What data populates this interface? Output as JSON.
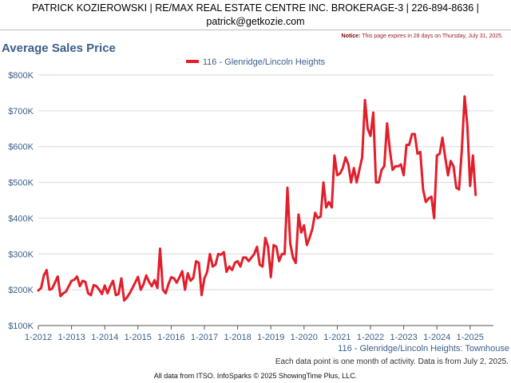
{
  "header": {
    "line1": "PATRICK KOZIEROWSKI | RE/MAX REAL ESTATE CENTRE INC. BROKERAGE-3 | 226-894-8636 |",
    "line2": "patrick@getkozie.com"
  },
  "notice": {
    "label": "Notice:",
    "text": "This page expires in 28 days on Thursday, July 31, 2025."
  },
  "footer": {
    "series_note": "116 - Glenridge/Lincoln Heights: Townhouse",
    "data_note": "Each data point is one month of activity. Data is from July 2, 2025.",
    "source": "All data from ITSO. InfoSparks © 2025 ShowingTime Plus, LLC."
  },
  "colors": {
    "series": "#e31e2b",
    "text_blue": "#3a5f8a",
    "grid": "#d9d9d9"
  },
  "chart_data": {
    "type": "line",
    "title": "Average Sales Price",
    "legend": "top-center",
    "grid": true,
    "ylim": [
      100000,
      800000
    ],
    "y_ticks": [
      {
        "value": 100000,
        "label": "$100K"
      },
      {
        "value": 200000,
        "label": "$200K"
      },
      {
        "value": 300000,
        "label": "$300K"
      },
      {
        "value": 400000,
        "label": "$400K"
      },
      {
        "value": 500000,
        "label": "$500K"
      },
      {
        "value": 600000,
        "label": "$600K"
      },
      {
        "value": 700000,
        "label": "$700K"
      },
      {
        "value": 800000,
        "label": "$800K"
      }
    ],
    "x_ticks": [
      "1-2012",
      "1-2013",
      "1-2014",
      "1-2015",
      "1-2016",
      "1-2017",
      "1-2018",
      "1-2019",
      "1-2020",
      "1-2021",
      "1-2022",
      "1-2023",
      "1-2024",
      "1-2025"
    ],
    "start": "1-2012",
    "series": [
      {
        "name": "116 - Glenridge/Lincoln Heights",
        "values": [
          198000,
          205000,
          240000,
          255000,
          200000,
          203000,
          220000,
          237000,
          182000,
          190000,
          195000,
          210000,
          225000,
          228000,
          237000,
          210000,
          225000,
          222000,
          190000,
          185000,
          213000,
          210000,
          200000,
          188000,
          212000,
          190000,
          210000,
          225000,
          185000,
          188000,
          232000,
          170000,
          178000,
          190000,
          205000,
          220000,
          236000,
          200000,
          215000,
          240000,
          222000,
          210000,
          227000,
          205000,
          315000,
          200000,
          190000,
          215000,
          235000,
          232000,
          220000,
          235000,
          252000,
          200000,
          246000,
          225000,
          233000,
          280000,
          275000,
          185000,
          232000,
          250000,
          300000,
          265000,
          270000,
          300000,
          298000,
          305000,
          250000,
          265000,
          255000,
          275000,
          280000,
          265000,
          290000,
          290000,
          280000,
          290000,
          300000,
          320000,
          270000,
          265000,
          345000,
          320000,
          235000,
          325000,
          320000,
          280000,
          300000,
          300000,
          485000,
          330000,
          290000,
          275000,
          410000,
          360000,
          380000,
          325000,
          345000,
          370000,
          415000,
          400000,
          405000,
          500000,
          430000,
          445000,
          430000,
          575000,
          520000,
          525000,
          540000,
          570000,
          550000,
          500000,
          540000,
          500000,
          535000,
          570000,
          730000,
          650000,
          630000,
          695000,
          500000,
          500000,
          535000,
          545000,
          665000,
          590000,
          535000,
          545000,
          545000,
          550000,
          520000,
          605000,
          605000,
          635000,
          635000,
          580000,
          585000,
          480000,
          445000,
          455000,
          460000,
          400000,
          575000,
          580000,
          625000,
          570000,
          520000,
          560000,
          545000,
          485000,
          480000,
          590000,
          740000,
          660000,
          490000,
          575000,
          465000
        ]
      }
    ]
  }
}
